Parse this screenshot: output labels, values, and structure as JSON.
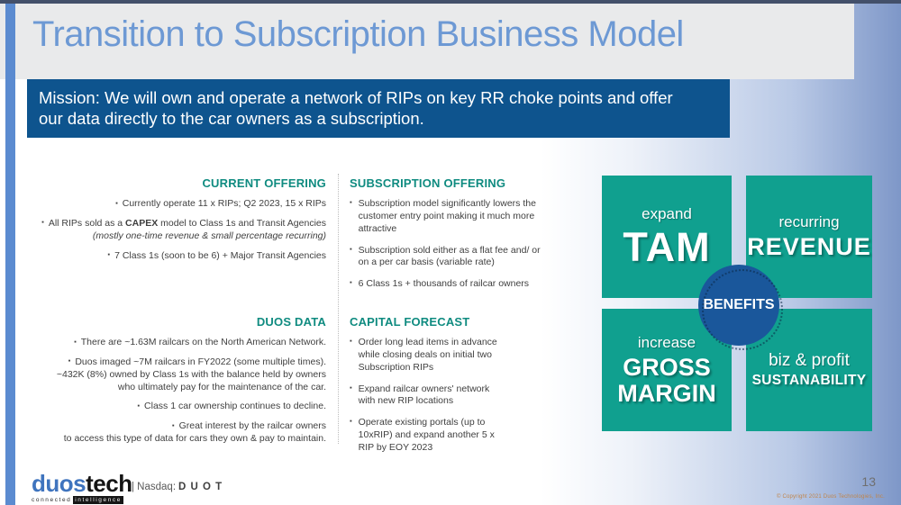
{
  "slide": {
    "title": "Transition to Subscription Business Model",
    "mission_line1": "Mission: We will own and operate a network of RIPs on key RR choke points and offer",
    "mission_line2": "our data directly to the car owners as a subscription.",
    "page_number": "13",
    "copyright": "© Copyright 2021 Duos Technologies, Inc."
  },
  "columns": {
    "current_offering": {
      "heading": "CURRENT OFFERING",
      "b0": "Currently operate 11 x RIPs; Q2 2023, 15 x RIPs",
      "b1_pre": "All RIPs sold as a ",
      "b1_bold": "CAPEX",
      "b1_post": " model to Class 1s and Transit Agencies",
      "b1_note": "(mostly one-time revenue & small percentage recurring)",
      "b2": "7 Class 1s (soon to be 6) + Major Transit Agencies"
    },
    "subscription_offering": {
      "heading": "SUBSCRIPTION OFFERING",
      "b0": "Subscription model significantly lowers the customer entry point making it much more attractive",
      "b1": "Subscription sold either as a flat fee and/ or on a per car basis (variable rate)",
      "b2": "6 Class 1s + thousands of railcar owners"
    },
    "duos_data": {
      "heading": "DUOS DATA",
      "b0": "There are ~1.63M railcars on the North American Network.",
      "b1_l1": "Duos imaged ~7M railcars in FY2022 (some multiple times).",
      "b1_l2": "~432K (8%) owned by Class 1s with the balance held by owners",
      "b1_l3": "who ultimately pay for the maintenance of the car.",
      "b2": "Class 1 car ownership continues to decline.",
      "b3_l1": "Great interest by the railcar owners",
      "b3_l2": "to access this type of data for cars they own & pay to maintain."
    },
    "capital_forecast": {
      "heading": "CAPITAL FORECAST",
      "b0": "Order long lead items in advance while closing deals on initial two Subscription RIPs",
      "b1": "Expand railcar owners' network with new RIP locations",
      "b2": "Operate existing portals (up to 10xRIP) and expand another 5 x RIP by EOY 2023"
    }
  },
  "benefits": {
    "center_label": "BENEFITS",
    "quadrants": [
      {
        "small": "expand",
        "big": "TAM"
      },
      {
        "small": "recurring",
        "big": "REVENUE"
      },
      {
        "small": "increase",
        "big": "GROSS MARGIN"
      },
      {
        "small": "biz & profit",
        "big": "SUSTANABILITY"
      }
    ]
  },
  "footer": {
    "logo_primary": "duos",
    "logo_secondary": "tech",
    "tagline_left": "connected",
    "tagline_right": "intelligence",
    "nasdaq_prefix": "| Nasdaq:",
    "nasdaq_ticker": "D U O T"
  },
  "colors": {
    "title_blue": "#6d99d4",
    "accent_bar_blue": "#5b8bd0",
    "mission_blue": "#0e548e",
    "heading_teal": "#0f8b80",
    "quadrant_teal": "#10a08f",
    "benefits_circle_blue": "#1a579b",
    "body_text": "#3f3f3f",
    "page_number_gray": "#6f6f6f",
    "copyright_orange": "#c08449"
  }
}
